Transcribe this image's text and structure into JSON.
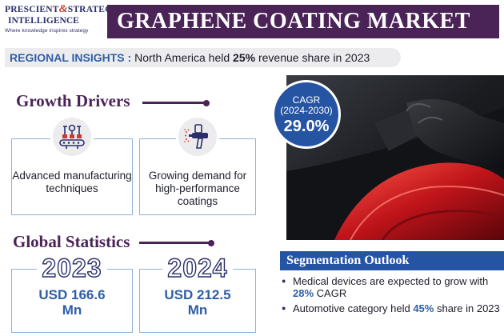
{
  "logo": {
    "line1_a": "PRESCIENT",
    "line1_amp": "&",
    "line1_b": "STRATEGIC",
    "line2": "INTELLIGENCE",
    "tagline": "Where knowledge inspires strategy"
  },
  "title": "GRAPHENE COATING MARKET",
  "insight": {
    "key": "REGIONAL INSIGHTS :",
    "text_before": "North America held",
    "highlight": "25%",
    "text_after": "revenue share in 2023"
  },
  "growth_drivers": {
    "heading": "Growth Drivers",
    "cards": [
      {
        "icon": "manufacturing-conveyor-icon",
        "text": "Advanced manufacturing techniques"
      },
      {
        "icon": "spray-gun-icon",
        "text": "Growing demand for high-performance coatings"
      }
    ]
  },
  "global_statistics": {
    "heading": "Global Statistics",
    "stats": [
      {
        "year": "2023",
        "value_line1": "USD 166.6",
        "value_line2": "Mn"
      },
      {
        "year": "2024",
        "value_line1": "USD 212.5",
        "value_line2": "Mn"
      }
    ]
  },
  "cagr": {
    "label_line1": "CAGR",
    "label_line2": "(2024-2030)",
    "value": "29.0%"
  },
  "segmentation": {
    "heading": "Segmentation Outlook",
    "items": [
      {
        "before": "Medical devices are expected to grow with",
        "highlight": "28%",
        "after": "CAGR"
      },
      {
        "before": "Automotive category held",
        "highlight": "45%",
        "after": "share in 2023"
      }
    ]
  },
  "colors": {
    "purple": "#4a2357",
    "blue": "#2554a3",
    "accent_blue_text": "#2e5ea8",
    "card_border": "#8fb2d6",
    "logo_red": "#d2362c"
  }
}
